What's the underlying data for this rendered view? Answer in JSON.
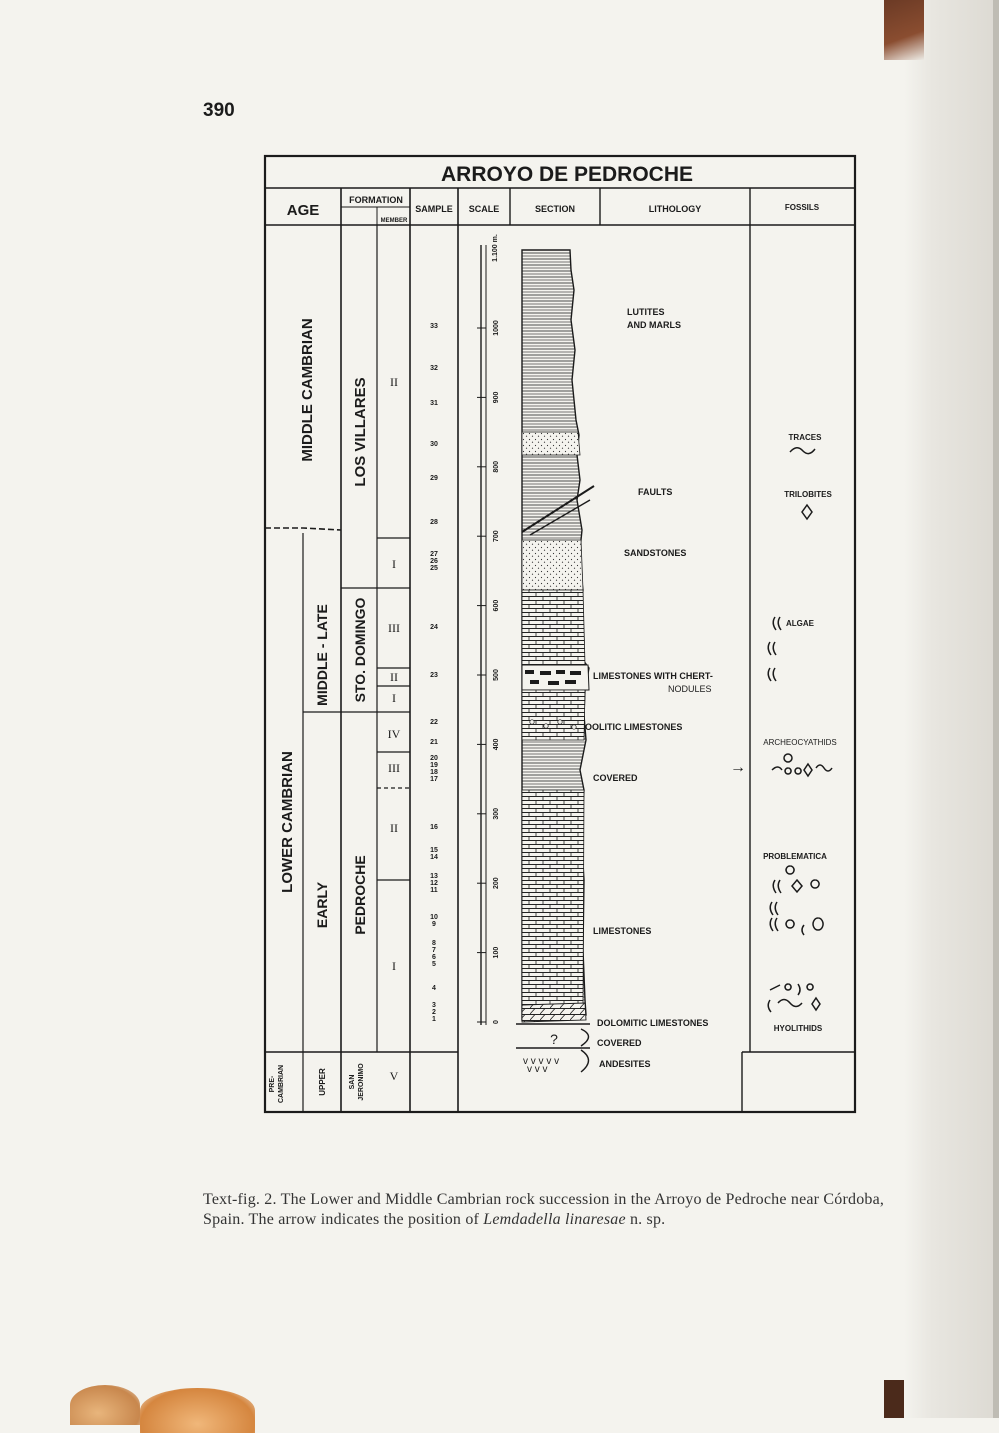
{
  "page_number": "390",
  "figure": {
    "title": "ARROYO DE PEDROCHE",
    "headers": {
      "age": "AGE",
      "formation": "FORMATION",
      "member": "MEMBER",
      "sample": "SAMPLE",
      "scale": "SCALE",
      "section": "SECTION",
      "lithology": "LITHOLOGY",
      "fossils": "FOSSILS"
    },
    "age_units": [
      "MIDDLE CAMBRIAN",
      "LOWER CAMBRIAN",
      "PRE-\nCAMBRIAN"
    ],
    "subages": [
      "MIDDLE - LATE",
      "EARLY",
      "UPPER"
    ],
    "formations": [
      "LOS VILLARES",
      "STO. DOMINGO",
      "PEDROCHE",
      "SAN\nJERONIMO"
    ],
    "members": [
      "II",
      "I",
      "III",
      "II",
      "I",
      "IV",
      "III",
      "II",
      "I",
      "V"
    ],
    "samples": [
      "33",
      "32",
      "31",
      "30",
      "29",
      "28",
      "27\n26\n25",
      "24",
      "23",
      "22",
      "21",
      "20\n19\n18\n17",
      "16",
      "15\n14",
      "13\n12\n11",
      "10\n9",
      "8\n7\n6\n5",
      "4",
      "3\n2\n1"
    ],
    "scale_top": "1.100 m.",
    "scale_ticks": [
      "1000",
      "900",
      "800",
      "700",
      "600",
      "500",
      "400",
      "300",
      "200",
      "100",
      "0"
    ],
    "lithology_labels": [
      "LUTITES\nAND MARLS",
      "FAULTS",
      "SANDSTONES",
      "LIMESTONES WITH CHERT-\nNODULES",
      "OOLITIC LIMESTONES",
      "COVERED",
      "LIMESTONES",
      "DOLOMITIC LIMESTONES",
      "COVERED",
      "ANDESITES"
    ],
    "question_mark": "?",
    "arrow": "→",
    "fossil_labels": [
      "TRACES",
      "TRILOBITES",
      "ALGAE",
      "ARCHEOCYATHIDS",
      "PROBLEMATICA",
      "HYOLITHIDS"
    ]
  },
  "caption": {
    "part1": "Text-fig. 2. The Lower and Middle Cambrian rock succession in the Arroyo de Pedroche near Córdoba, Spain. The arrow indicates the position of ",
    "species": "Lemdadella linaresae",
    "part2": " n. sp."
  }
}
